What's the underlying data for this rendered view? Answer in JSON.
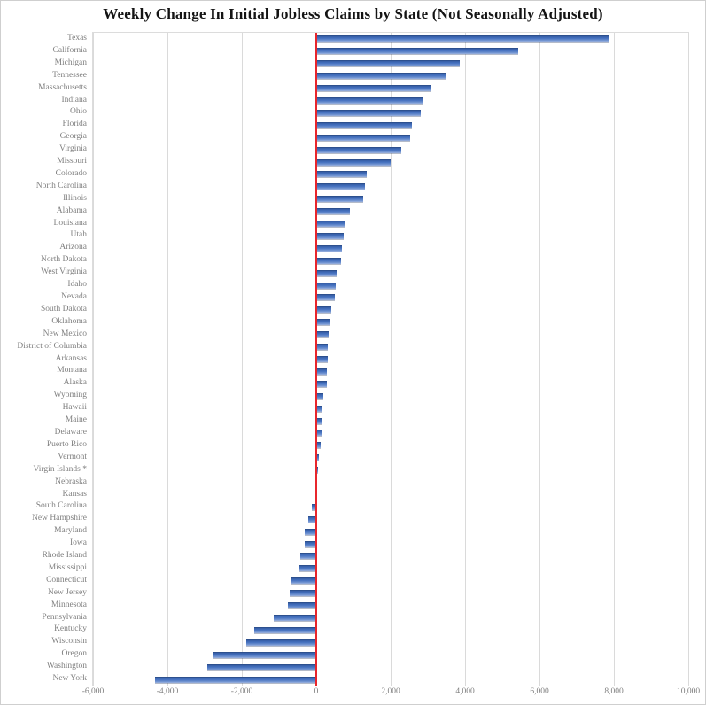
{
  "title": "Weekly Change In Initial Jobless Claims by State (Not Seasonally Adjusted)",
  "colors": {
    "bar_blue": "#4472C4",
    "zero_line_red": "#E8262C",
    "gridline_gray": "#DADADA",
    "axis_text_gray": "#7F7F7F",
    "title_black": "#141414"
  },
  "chart_data": {
    "type": "bar",
    "orientation": "horizontal",
    "title": "Weekly Change In Initial Jobless Claims by State (Not Seasonally Adjusted)",
    "xlabel": "",
    "ylabel": "",
    "xlim": [
      -6000,
      10000
    ],
    "grid": true,
    "zero_line": true,
    "x_ticks": [
      -6000,
      -4000,
      -2000,
      0,
      2000,
      4000,
      6000,
      8000,
      10000
    ],
    "x_tick_labels": [
      "-6,000",
      "-4,000",
      "-2,000",
      "0",
      "2,000",
      "4,000",
      "6,000",
      "8,000",
      "10,000"
    ],
    "categories": [
      "Texas",
      "California",
      "Michigan",
      "Tennessee",
      "Massachusetts",
      "Indiana",
      "Ohio",
      "Florida",
      "Georgia",
      "Virginia",
      "Missouri",
      "Colorado",
      "North Carolina",
      "Illinois",
      "Alabama",
      "Louisiana",
      "Utah",
      "Arizona",
      "North Dakota",
      "West Virginia",
      "Idaho",
      "Nevada",
      "South Dakota",
      "Oklahoma",
      "New Mexico",
      "District of Columbia",
      "Arkansas",
      "Montana",
      "Alaska",
      "Wyoming",
      "Hawaii",
      "Maine",
      "Delaware",
      "Puerto Rico",
      "Vermont",
      "Virgin Islands *",
      "Nebraska",
      "Kansas",
      "South Carolina",
      "New Hampshire",
      "Maryland",
      "Iowa",
      "Rhode Island",
      "Mississippi",
      "Connecticut",
      "New Jersey",
      "Minnesota",
      "Pennsylvania",
      "Kentucky",
      "Wisconsin",
      "Oregon",
      "Washington",
      "New York"
    ],
    "values": [
      7850,
      5420,
      3850,
      3500,
      3060,
      2890,
      2800,
      2580,
      2530,
      2280,
      2000,
      1350,
      1310,
      1270,
      900,
      790,
      730,
      700,
      670,
      560,
      520,
      490,
      400,
      360,
      340,
      320,
      300,
      290,
      280,
      185,
      170,
      160,
      140,
      125,
      60,
      45,
      30,
      20,
      -120,
      -220,
      -300,
      -320,
      -430,
      -480,
      -660,
      -710,
      -770,
      -1150,
      -1660,
      -1870,
      -2790,
      -2930,
      -4340
    ]
  }
}
